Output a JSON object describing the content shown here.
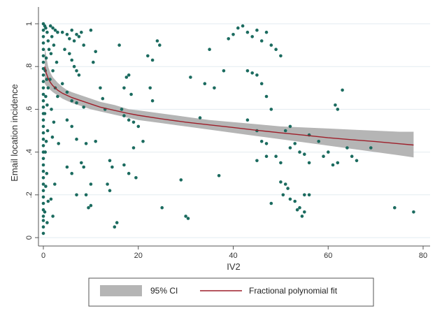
{
  "chart_data": {
    "type": "scatter",
    "title": "",
    "xlabel": "IV2",
    "ylabel": "Email location incidence",
    "xlim": [
      0,
      80
    ],
    "ylim": [
      0,
      1
    ],
    "x_ticks": [
      0,
      20,
      40,
      60,
      80
    ],
    "x_tick_labels": [
      "0",
      "20",
      "40",
      "60",
      "80"
    ],
    "y_ticks": [
      0,
      0.2,
      0.4,
      0.6,
      0.8,
      1
    ],
    "y_tick_labels": [
      "0",
      ".2",
      ".4",
      ".6",
      ".8",
      "1"
    ],
    "grid": "horizontal",
    "legend_position": "bottom",
    "legend": [
      {
        "label": "95% CI",
        "color": "#b5b5b5"
      },
      {
        "label": "Fractional polynomial fit",
        "color": "#9e1f2a"
      }
    ],
    "colors": {
      "points": "#1b6b5f",
      "fit_line": "#9e1f2a",
      "ci_band": "#b5b5b5",
      "grid": "#e3ebf0"
    },
    "fit": {
      "x": [
        0.3,
        0.6,
        1,
        1.5,
        2,
        3,
        4,
        5,
        6,
        8,
        10,
        12,
        15,
        18,
        20,
        25,
        30,
        35,
        40,
        45,
        50,
        55,
        60,
        65,
        70,
        75,
        78
      ],
      "y": [
        0.8,
        0.77,
        0.745,
        0.725,
        0.71,
        0.69,
        0.675,
        0.665,
        0.655,
        0.64,
        0.625,
        0.61,
        0.595,
        0.58,
        0.572,
        0.555,
        0.54,
        0.527,
        0.515,
        0.502,
        0.49,
        0.479,
        0.467,
        0.458,
        0.449,
        0.439,
        0.433
      ],
      "ci_lower": [
        0.72,
        0.71,
        0.7,
        0.69,
        0.68,
        0.665,
        0.65,
        0.64,
        0.63,
        0.615,
        0.6,
        0.59,
        0.575,
        0.56,
        0.55,
        0.535,
        0.52,
        0.505,
        0.49,
        0.475,
        0.46,
        0.445,
        0.43,
        0.415,
        0.4,
        0.385,
        0.375
      ],
      "ci_upper": [
        0.89,
        0.85,
        0.8,
        0.77,
        0.75,
        0.725,
        0.705,
        0.69,
        0.68,
        0.665,
        0.65,
        0.635,
        0.62,
        0.6,
        0.595,
        0.58,
        0.565,
        0.55,
        0.54,
        0.53,
        0.52,
        0.515,
        0.51,
        0.505,
        0.5,
        0.495,
        0.495
      ]
    },
    "points": [
      [
        0,
        0.02
      ],
      [
        0,
        0.05
      ],
      [
        0,
        0.08
      ],
      [
        0,
        0.1
      ],
      [
        0,
        0.13
      ],
      [
        0,
        0.16
      ],
      [
        0,
        0.19
      ],
      [
        0,
        0.22
      ],
      [
        0,
        0.25
      ],
      [
        0,
        0.28
      ],
      [
        0,
        0.31
      ],
      [
        0,
        0.34
      ],
      [
        0,
        0.37
      ],
      [
        0,
        0.4
      ],
      [
        0,
        0.43
      ],
      [
        0,
        0.46
      ],
      [
        0,
        0.49
      ],
      [
        0,
        0.52
      ],
      [
        0,
        0.55
      ],
      [
        0,
        0.58
      ],
      [
        0,
        0.61
      ],
      [
        0,
        0.64
      ],
      [
        0,
        0.67
      ],
      [
        0,
        0.7
      ],
      [
        0,
        0.73
      ],
      [
        0,
        0.76
      ],
      [
        0,
        0.79
      ],
      [
        0,
        0.82
      ],
      [
        0,
        0.85
      ],
      [
        0,
        0.88
      ],
      [
        0,
        0.91
      ],
      [
        0,
        0.94
      ],
      [
        0,
        0.97
      ],
      [
        0,
        1.0
      ],
      [
        0.3,
        0.99
      ],
      [
        0.5,
        0.98
      ],
      [
        0.8,
        0.96
      ],
      [
        1,
        0.92
      ],
      [
        1.2,
        0.88
      ],
      [
        0.6,
        0.84
      ],
      [
        0.4,
        0.78
      ],
      [
        0.7,
        0.74
      ],
      [
        1,
        0.7
      ],
      [
        0.5,
        0.66
      ],
      [
        0.8,
        0.62
      ],
      [
        0.3,
        0.58
      ],
      [
        0.9,
        0.5
      ],
      [
        0.6,
        0.45
      ],
      [
        0.4,
        0.4
      ],
      [
        0.7,
        0.3
      ],
      [
        0.5,
        0.24
      ],
      [
        1,
        0.17
      ],
      [
        0.3,
        0.12
      ],
      [
        0.8,
        0.07
      ],
      [
        1.5,
        0.99
      ],
      [
        2,
        0.98
      ],
      [
        2.5,
        0.97
      ],
      [
        3,
        0.96
      ],
      [
        1.8,
        0.94
      ],
      [
        2.2,
        0.9
      ],
      [
        1.6,
        0.86
      ],
      [
        2.8,
        0.82
      ],
      [
        2,
        0.78
      ],
      [
        1.4,
        0.74
      ],
      [
        2.5,
        0.7
      ],
      [
        3,
        0.66
      ],
      [
        1.7,
        0.6
      ],
      [
        2.2,
        0.54
      ],
      [
        1.9,
        0.47
      ],
      [
        3.2,
        0.44
      ],
      [
        2.4,
        0.25
      ],
      [
        1.6,
        0.18
      ],
      [
        2,
        0.1
      ],
      [
        4,
        0.96
      ],
      [
        5,
        0.95
      ],
      [
        5.5,
        0.93
      ],
      [
        6,
        0.97
      ],
      [
        6.5,
        0.92
      ],
      [
        7,
        0.95
      ],
      [
        7.5,
        0.94
      ],
      [
        8,
        0.96
      ],
      [
        8.5,
        0.9
      ],
      [
        4.5,
        0.88
      ],
      [
        5.5,
        0.86
      ],
      [
        6,
        0.83
      ],
      [
        6.5,
        0.8
      ],
      [
        7,
        0.78
      ],
      [
        7.5,
        0.76
      ],
      [
        4,
        0.72
      ],
      [
        5,
        0.68
      ],
      [
        6,
        0.64
      ],
      [
        7,
        0.63
      ],
      [
        8.5,
        0.61
      ],
      [
        5,
        0.55
      ],
      [
        6,
        0.52
      ],
      [
        7,
        0.46
      ],
      [
        9,
        0.44
      ],
      [
        5,
        0.33
      ],
      [
        6,
        0.3
      ],
      [
        8,
        0.35
      ],
      [
        8.5,
        0.33
      ],
      [
        10,
        0.25
      ],
      [
        9,
        0.2
      ],
      [
        10,
        0.15
      ],
      [
        9.5,
        0.14
      ],
      [
        7,
        0.2
      ],
      [
        10,
        0.97
      ],
      [
        11,
        0.87
      ],
      [
        10.5,
        0.82
      ],
      [
        12,
        0.7
      ],
      [
        12.5,
        0.65
      ],
      [
        13,
        0.6
      ],
      [
        11,
        0.45
      ],
      [
        14,
        0.36
      ],
      [
        14.5,
        0.33
      ],
      [
        13.5,
        0.25
      ],
      [
        14,
        0.22
      ],
      [
        15,
        0.05
      ],
      [
        15.5,
        0.07
      ],
      [
        16,
        0.9
      ],
      [
        17,
        0.7
      ],
      [
        17.5,
        0.75
      ],
      [
        18,
        0.76
      ],
      [
        18.5,
        0.67
      ],
      [
        16.5,
        0.6
      ],
      [
        17,
        0.57
      ],
      [
        18,
        0.55
      ],
      [
        19,
        0.54
      ],
      [
        20,
        0.52
      ],
      [
        21,
        0.45
      ],
      [
        19,
        0.42
      ],
      [
        18,
        0.3
      ],
      [
        17,
        0.34
      ],
      [
        19.5,
        0.28
      ],
      [
        22,
        0.85
      ],
      [
        23,
        0.83
      ],
      [
        24,
        0.92
      ],
      [
        24.5,
        0.9
      ],
      [
        22.5,
        0.7
      ],
      [
        23,
        0.64
      ],
      [
        25,
        0.14
      ],
      [
        29,
        0.27
      ],
      [
        30,
        0.1
      ],
      [
        30.5,
        0.09
      ],
      [
        31,
        0.75
      ],
      [
        33,
        0.56
      ],
      [
        34,
        0.72
      ],
      [
        35,
        0.88
      ],
      [
        36,
        0.7
      ],
      [
        37,
        0.29
      ],
      [
        38,
        0.78
      ],
      [
        39,
        0.93
      ],
      [
        40,
        0.95
      ],
      [
        41,
        0.98
      ],
      [
        42,
        0.99
      ],
      [
        43,
        0.96
      ],
      [
        44,
        0.94
      ],
      [
        45,
        0.97
      ],
      [
        46,
        0.92
      ],
      [
        47,
        0.96
      ],
      [
        48,
        0.9
      ],
      [
        49,
        0.88
      ],
      [
        50,
        0.85
      ],
      [
        43,
        0.78
      ],
      [
        44,
        0.77
      ],
      [
        45,
        0.76
      ],
      [
        46,
        0.72
      ],
      [
        47,
        0.66
      ],
      [
        48,
        0.6
      ],
      [
        43,
        0.55
      ],
      [
        45,
        0.5
      ],
      [
        46,
        0.45
      ],
      [
        47,
        0.44
      ],
      [
        49,
        0.38
      ],
      [
        50,
        0.35
      ],
      [
        45,
        0.36
      ],
      [
        47,
        0.38
      ],
      [
        48,
        0.16
      ],
      [
        50,
        0.26
      ],
      [
        51,
        0.25
      ],
      [
        51.5,
        0.23
      ],
      [
        50.5,
        0.2
      ],
      [
        52,
        0.18
      ],
      [
        53,
        0.17
      ],
      [
        54,
        0.14
      ],
      [
        55,
        0.12
      ],
      [
        54.5,
        0.1
      ],
      [
        53.5,
        0.13
      ],
      [
        55,
        0.2
      ],
      [
        56,
        0.2
      ],
      [
        52,
        0.42
      ],
      [
        53,
        0.44
      ],
      [
        54,
        0.4
      ],
      [
        55,
        0.39
      ],
      [
        56,
        0.35
      ],
      [
        51,
        0.5
      ],
      [
        52,
        0.52
      ],
      [
        56,
        0.48
      ],
      [
        58,
        0.45
      ],
      [
        59,
        0.38
      ],
      [
        60,
        0.4
      ],
      [
        61,
        0.34
      ],
      [
        61.5,
        0.62
      ],
      [
        62,
        0.6
      ],
      [
        63,
        0.69
      ],
      [
        64,
        0.42
      ],
      [
        65,
        0.38
      ],
      [
        66,
        0.36
      ],
      [
        62,
        0.35
      ],
      [
        69,
        0.42
      ],
      [
        74,
        0.14
      ],
      [
        78,
        0.12
      ]
    ]
  }
}
